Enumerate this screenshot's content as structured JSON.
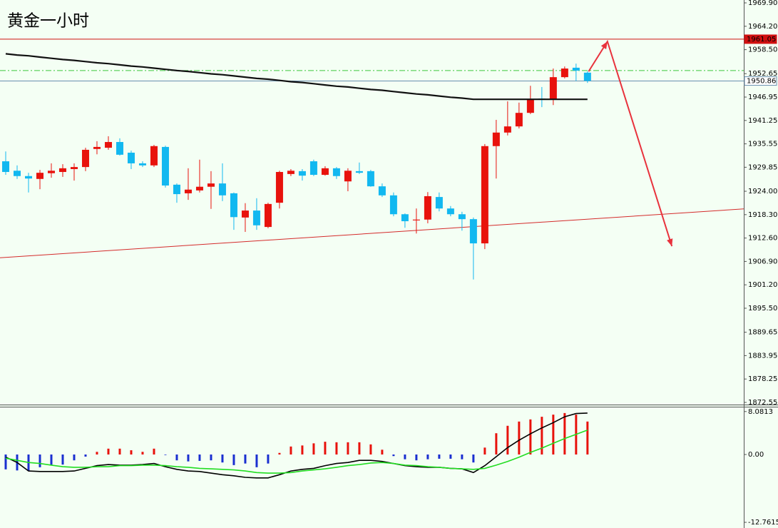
{
  "chart_data": [
    {
      "type": "candlestick",
      "title": "黄金一小时",
      "title_color": "#e8251c",
      "up_color": "#e8120c",
      "down_color": "#12b8f0",
      "open": [
        1931.3,
        1929.0,
        1927.7,
        1927.0,
        1928.4,
        1928.7,
        1929.4,
        1929.9,
        1934.3,
        1934.6,
        1936.0,
        1933.4,
        1930.8,
        1930.3,
        1934.8,
        1925.6,
        1923.5,
        1924.2,
        1925.1,
        1925.9,
        1923.5,
        1917.6,
        1919.3,
        1915.3,
        1921.2,
        1928.2,
        1928.9,
        1931.3,
        1928.0,
        1929.6,
        1926.4,
        1928.9,
        1928.9,
        1925.2,
        1923.0,
        1918.4,
        1916.9,
        1917.1,
        1922.6,
        1919.8,
        1918.4,
        1917.2,
        1911.3,
        1935.0,
        1938.3,
        1939.8,
        1943.1,
        1946.6,
        1946.3,
        1951.8,
        1954.1,
        1952.9
      ],
      "high": [
        1933.7,
        1930.3,
        1928.5,
        1929.2,
        1930.8,
        1930.6,
        1930.8,
        1934.6,
        1936.2,
        1937.4,
        1936.9,
        1933.9,
        1931.3,
        1935.3,
        1935.1,
        1925.9,
        1929.6,
        1931.7,
        1928.9,
        1930.8,
        1923.7,
        1921.1,
        1922.3,
        1921.2,
        1929.0,
        1929.4,
        1929.4,
        1931.7,
        1930.1,
        1929.9,
        1929.6,
        1931.0,
        1929.2,
        1925.9,
        1923.7,
        1918.6,
        1919.8,
        1923.8,
        1923.7,
        1920.4,
        1919.0,
        1917.6,
        1935.5,
        1941.4,
        1945.9,
        1945.6,
        1949.7,
        1949.4,
        1953.9,
        1954.4,
        1955.1,
        1953.2
      ],
      "low": [
        1928.0,
        1927.0,
        1923.7,
        1924.5,
        1927.3,
        1927.5,
        1926.6,
        1928.9,
        1933.0,
        1934.1,
        1932.7,
        1929.4,
        1929.9,
        1929.9,
        1924.9,
        1921.2,
        1921.9,
        1923.7,
        1919.7,
        1921.6,
        1914.6,
        1914.1,
        1914.6,
        1915.0,
        1919.8,
        1927.7,
        1926.6,
        1927.7,
        1927.8,
        1927.0,
        1924.0,
        1928.2,
        1925.1,
        1922.6,
        1917.9,
        1915.1,
        1913.7,
        1916.2,
        1919.1,
        1917.9,
        1914.4,
        1902.5,
        1909.9,
        1927.1,
        1937.6,
        1939.3,
        1942.8,
        1944.5,
        1945.0,
        1951.5,
        1950.9,
        1950.4
      ],
      "close": [
        1928.7,
        1927.7,
        1927.1,
        1928.5,
        1929.0,
        1929.6,
        1929.9,
        1934.1,
        1934.8,
        1936.0,
        1932.9,
        1930.8,
        1930.3,
        1935.0,
        1925.4,
        1923.3,
        1924.4,
        1925.1,
        1925.9,
        1923.0,
        1917.7,
        1919.3,
        1915.7,
        1920.9,
        1928.7,
        1929.0,
        1927.8,
        1928.0,
        1929.6,
        1927.7,
        1929.0,
        1928.5,
        1925.2,
        1923.0,
        1918.4,
        1916.7,
        1917.1,
        1922.8,
        1919.8,
        1918.4,
        1917.2,
        1911.3,
        1935.0,
        1938.3,
        1939.8,
        1943.1,
        1946.3,
        1946.3,
        1951.8,
        1953.9,
        1953.4,
        1950.9
      ],
      "ma": {
        "color": "#111111",
        "values": [
          1957.5,
          1957.2,
          1957.0,
          1956.7,
          1956.4,
          1956.1,
          1955.9,
          1955.6,
          1955.3,
          1955.1,
          1954.8,
          1954.5,
          1954.3,
          1954.0,
          1953.7,
          1953.4,
          1953.2,
          1952.9,
          1952.6,
          1952.4,
          1952.1,
          1951.8,
          1951.5,
          1951.3,
          1951.0,
          1950.7,
          1950.5,
          1950.2,
          1949.9,
          1949.6,
          1949.4,
          1949.1,
          1948.8,
          1948.6,
          1948.3,
          1948.0,
          1947.7,
          1947.5,
          1947.2,
          1946.9,
          1946.7,
          1946.4,
          1946.4,
          1946.4,
          1946.4,
          1946.4,
          1946.4,
          1946.4,
          1946.4,
          1946.4,
          1946.4,
          1946.4
        ]
      },
      "trendline": {
        "color": "#d42a2a",
        "x": [
          -0.5,
          64.7
        ],
        "y": [
          1907.8,
          1919.7
        ]
      },
      "projection": {
        "color": "#e8323c",
        "x": [
          51.1,
          52.75,
          58.4
        ],
        "y": [
          1953.2,
          1960.5,
          1910.6
        ]
      },
      "levels": [
        {
          "value": 1961.05,
          "color": "#d01010",
          "style": "solid",
          "tag_fill": "#d01010",
          "tag_text": "#ffffff"
        },
        {
          "value": 1950.86,
          "color": "#6a8fb0",
          "style": "solid",
          "tag_fill": "#ffffff",
          "tag_text": "#000000"
        },
        {
          "value": 1953.4,
          "color": "#3cc83c",
          "style": "dashdot"
        }
      ],
      "xlim": [
        -0.5,
        64.7
      ],
      "ylim": [
        1872.2,
        1970.6
      ],
      "yticks": [
        {
          "value": 1969.9,
          "label": "1969.90"
        },
        {
          "value": 1964.2,
          "label": "1964.20"
        },
        {
          "value": 1958.5,
          "label": "1958.50"
        },
        1952.65,
        1946.95,
        1941.25,
        1935.55,
        1929.85,
        {
          "value": 1924,
          "label": "1924.00"
        },
        {
          "value": 1918.3,
          "label": "1918.30"
        },
        {
          "value": 1912.6,
          "label": "1912.60"
        },
        {
          "value": 1906.9,
          "label": "1906.90"
        },
        {
          "value": 1901.2,
          "label": "1901.20"
        },
        {
          "value": 1895.5,
          "label": "1895.50"
        },
        1889.65,
        1883.95,
        1878.25,
        1872.55
      ]
    },
    {
      "type": "macd",
      "bars": {
        "up_color": "#e8120c",
        "down_color": "#1a2fd0",
        "values": [
          -2.8,
          -3.0,
          -3.1,
          -2.4,
          -2.0,
          -1.9,
          -1.1,
          -0.4,
          0.5,
          1.1,
          1.1,
          0.8,
          0.5,
          1.1,
          -0.1,
          -1.1,
          -1.3,
          -1.2,
          -1.1,
          -1.5,
          -2.0,
          -1.7,
          -2.4,
          -1.7,
          0.3,
          1.5,
          1.7,
          2.1,
          2.4,
          2.3,
          2.3,
          2.3,
          1.9,
          0.9,
          -0.3,
          -0.9,
          -1.1,
          -0.9,
          -0.8,
          -0.8,
          -0.9,
          -1.5,
          1.3,
          4.0,
          5.4,
          6.2,
          6.6,
          7.1,
          7.5,
          7.8,
          7.5,
          6.2
        ]
      },
      "series": [
        {
          "color": "#000000",
          "values": [
            -0.5,
            -1.5,
            -3.1,
            -3.2,
            -3.2,
            -3.2,
            -3.1,
            -2.6,
            -2.1,
            -1.9,
            -2.0,
            -2.0,
            -1.9,
            -1.7,
            -2.3,
            -2.8,
            -3.1,
            -3.2,
            -3.5,
            -3.8,
            -4.0,
            -4.3,
            -4.4,
            -4.4,
            -3.8,
            -3.1,
            -2.8,
            -2.6,
            -2.1,
            -1.7,
            -1.5,
            -1.1,
            -1.1,
            -1.3,
            -1.7,
            -2.1,
            -2.3,
            -2.4,
            -2.4,
            -2.6,
            -2.7,
            -3.4,
            -2.1,
            -0.4,
            1.3,
            2.7,
            3.9,
            5.0,
            6.0,
            7.1,
            7.7,
            7.8
          ]
        },
        {
          "color": "#22dd22",
          "values": [
            -0.7,
            -1.1,
            -1.5,
            -1.7,
            -2.0,
            -2.3,
            -2.4,
            -2.4,
            -2.3,
            -2.3,
            -2.1,
            -2.1,
            -2.0,
            -2.0,
            -2.1,
            -2.3,
            -2.4,
            -2.6,
            -2.7,
            -2.8,
            -2.9,
            -3.1,
            -3.4,
            -3.5,
            -3.5,
            -3.4,
            -3.1,
            -2.9,
            -2.7,
            -2.4,
            -2.1,
            -1.9,
            -1.6,
            -1.5,
            -1.7,
            -2.0,
            -2.1,
            -2.3,
            -2.4,
            -2.6,
            -2.7,
            -2.8,
            -2.6,
            -2.0,
            -1.3,
            -0.5,
            0.4,
            1.2,
            2.1,
            3.0,
            3.8,
            4.6
          ]
        }
      ],
      "xlim": [
        -0.5,
        64.7
      ],
      "ylim": [
        -13.83,
        8.59
      ],
      "yticks": [
        8.0813,
        {
          "value": 0,
          "label": "0.00"
        },
        -12.7615
      ]
    }
  ]
}
